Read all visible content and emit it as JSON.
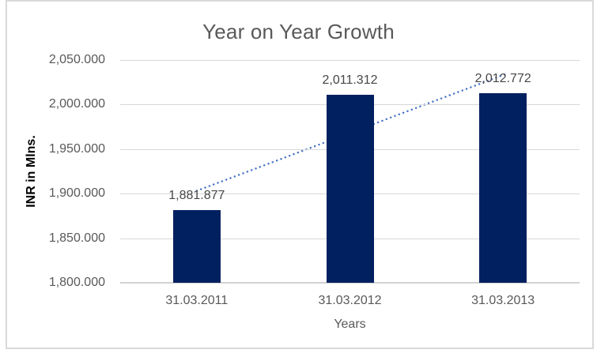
{
  "chart_data": {
    "type": "bar",
    "title": "Year on Year Growth",
    "xlabel": "Years",
    "ylabel": "INR in Mlns.",
    "categories": [
      "31.03.2011",
      "31.03.2012",
      "31.03.2013"
    ],
    "values": [
      1881.877,
      2011.312,
      2012.772
    ],
    "data_labels": [
      "1,881.877",
      "2,011.312",
      "2,012.772"
    ],
    "ylim": [
      1800,
      2050
    ],
    "ytick_step": 50,
    "yticks": [
      {
        "label": "2,050.000",
        "value": 2050
      },
      {
        "label": "2,000.000",
        "value": 2000
      },
      {
        "label": "1,950.000",
        "value": 1950
      },
      {
        "label": "1,900.000",
        "value": 1900
      },
      {
        "label": "1,850.000",
        "value": 1850
      },
      {
        "label": "1,800.000",
        "value": 1800
      }
    ],
    "grid": true,
    "legend": "none",
    "trendline": {
      "type": "linear",
      "style": "dotted"
    },
    "colors": {
      "bar": "#002060",
      "trendline": "#4472C4",
      "gridline": "#d9d9d9",
      "title_text": "#595959",
      "tick_text": "#595959",
      "data_label_text": "#474747",
      "frame_border": "#d9d9d9",
      "background": "#ffffff"
    }
  }
}
